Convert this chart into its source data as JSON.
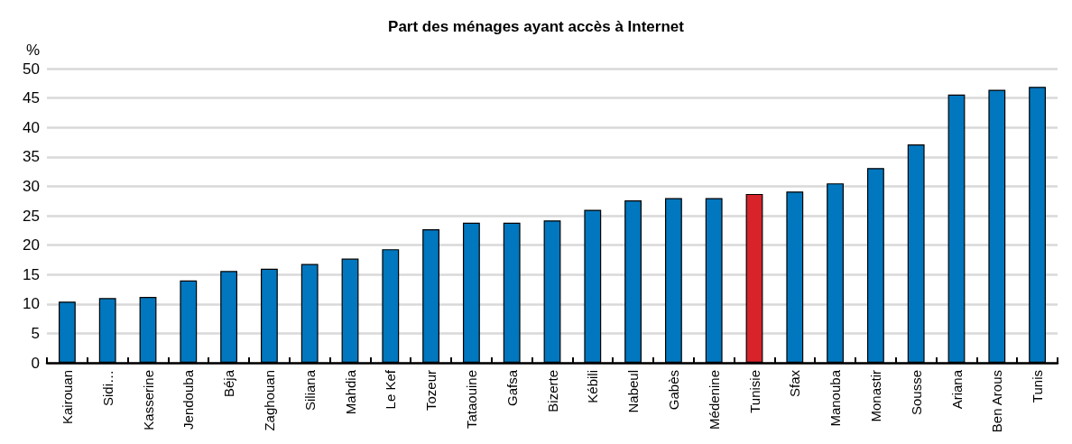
{
  "chart_data": {
    "type": "bar",
    "title": "Part des ménages ayant accès à Internet",
    "ylabel": "%",
    "categories": [
      "Kairouan",
      "Sidi…",
      "Kasserine",
      "Jendouba",
      "Béja",
      "Zaghouan",
      "Siliana",
      "Mahdia",
      "Le Kef",
      "Tozeur",
      "Tataouine",
      "Gafsa",
      "Bizerte",
      "Kébili",
      "Nabeul",
      "Gabès",
      "Médenine",
      "Tunisie",
      "Sfax",
      "Manouba",
      "Monastir",
      "Sousse",
      "Ariana",
      "Ben Arous",
      "Tunis"
    ],
    "values": [
      10.4,
      11,
      11.2,
      14,
      15.6,
      16,
      16.8,
      17.7,
      19.3,
      22.7,
      23.8,
      23.8,
      24.2,
      26,
      27.6,
      28,
      28,
      28.7,
      29.1,
      30.5,
      33.1,
      37.1,
      45.6,
      46.4,
      46.9
    ],
    "colors": [
      "#0077be",
      "#0077be",
      "#0077be",
      "#0077be",
      "#0077be",
      "#0077be",
      "#0077be",
      "#0077be",
      "#0077be",
      "#0077be",
      "#0077be",
      "#0077be",
      "#0077be",
      "#0077be",
      "#0077be",
      "#0077be",
      "#0077be",
      "#d8232a",
      "#0077be",
      "#0077be",
      "#0077be",
      "#0077be",
      "#0077be",
      "#0077be",
      "#0077be"
    ],
    "ylim": [
      0,
      50
    ],
    "yticks": [
      0,
      5,
      10,
      15,
      20,
      25,
      30,
      35,
      40,
      45,
      50
    ],
    "grid": "y"
  }
}
